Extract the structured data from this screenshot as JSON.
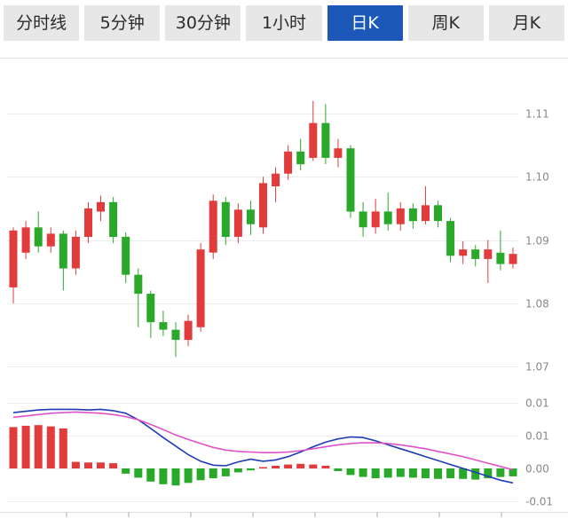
{
  "tabs": [
    {
      "key": "time-share",
      "label": "分时线",
      "active": false
    },
    {
      "key": "5min",
      "label": "5分钟",
      "active": false
    },
    {
      "key": "30min",
      "label": "30分钟",
      "active": false
    },
    {
      "key": "1hour",
      "label": "1小时",
      "active": false
    },
    {
      "key": "day-k",
      "label": "日K",
      "active": true
    },
    {
      "key": "week-k",
      "label": "周K",
      "active": false
    },
    {
      "key": "month-k",
      "label": "月K",
      "active": false
    }
  ],
  "colors": {
    "up": "#e23b3b",
    "down": "#2aa82a",
    "tab_bg": "#e7e7e7",
    "tab_text": "#2b2b2b",
    "active_tab_bg": "#1b58b8",
    "active_tab_text": "#ffffff",
    "grid": "#ececec",
    "axis_text": "#888888",
    "frame": "#dddddd"
  },
  "chart_data": [
    {
      "type": "candlestick",
      "panel": "price",
      "up_color": "#e23b3b",
      "down_color": "#2aa82a",
      "y_axis": {
        "side": "right",
        "ticks": [
          {
            "value": 1.11,
            "label": "1.11"
          },
          {
            "value": 1.1,
            "label": "1.10"
          },
          {
            "value": 1.09,
            "label": "1.09"
          },
          {
            "value": 1.08,
            "label": "1.08"
          },
          {
            "value": 1.07,
            "label": "1.07"
          }
        ]
      },
      "candle_format": [
        "open",
        "high",
        "low",
        "close"
      ],
      "candles": [
        [
          1.0825,
          1.092,
          1.08,
          1.0915
        ],
        [
          1.088,
          1.093,
          1.087,
          1.092
        ],
        [
          1.092,
          1.0945,
          1.088,
          1.089
        ],
        [
          1.089,
          1.092,
          1.088,
          1.091
        ],
        [
          1.091,
          1.0915,
          1.082,
          1.0855
        ],
        [
          1.0855,
          1.0915,
          1.0845,
          1.0905
        ],
        [
          1.0905,
          1.096,
          1.0895,
          1.095
        ],
        [
          1.0945,
          1.097,
          1.093,
          1.096
        ],
        [
          1.096,
          1.0968,
          1.0895,
          1.0905
        ],
        [
          1.0905,
          1.0912,
          1.0832,
          1.0845
        ],
        [
          1.0845,
          1.0855,
          1.0762,
          1.0815
        ],
        [
          1.0815,
          1.082,
          1.0745,
          1.077
        ],
        [
          1.077,
          1.0788,
          1.0748,
          1.0758
        ],
        [
          1.0758,
          1.077,
          1.0715,
          1.0742
        ],
        [
          1.0742,
          1.0782,
          1.0732,
          1.0772
        ],
        [
          1.0762,
          1.0895,
          1.0755,
          1.0885
        ],
        [
          1.088,
          1.0972,
          1.087,
          1.0962
        ],
        [
          1.096,
          1.0968,
          1.0892,
          1.0905
        ],
        [
          1.0905,
          1.0958,
          1.0895,
          1.0948
        ],
        [
          1.0948,
          1.0962,
          1.0908,
          1.0925
        ],
        [
          1.092,
          1.1,
          1.091,
          1.099
        ],
        [
          1.0985,
          1.1015,
          1.096,
          1.1005
        ],
        [
          1.1005,
          1.105,
          1.0995,
          1.104
        ],
        [
          1.104,
          1.106,
          1.101,
          1.102
        ],
        [
          1.103,
          1.112,
          1.1025,
          1.1085
        ],
        [
          1.1085,
          1.1115,
          1.102,
          1.103
        ],
        [
          1.103,
          1.106,
          1.1015,
          1.1045
        ],
        [
          1.1045,
          1.105,
          1.0935,
          1.0945
        ],
        [
          1.0945,
          1.096,
          1.0905,
          1.092
        ],
        [
          1.092,
          1.0965,
          1.091,
          1.0945
        ],
        [
          1.0945,
          1.0975,
          1.0915,
          1.0925
        ],
        [
          1.0925,
          1.096,
          1.0915,
          1.095
        ],
        [
          1.095,
          1.0958,
          1.0918,
          1.093
        ],
        [
          1.093,
          1.0985,
          1.0925,
          1.0955
        ],
        [
          1.0955,
          1.0962,
          1.092,
          1.093
        ],
        [
          1.093,
          1.0935,
          1.0865,
          1.0875
        ],
        [
          1.0875,
          1.0898,
          1.0862,
          1.0885
        ],
        [
          1.0885,
          1.0892,
          1.0858,
          1.087
        ],
        [
          1.087,
          1.09,
          1.0832,
          1.0885
        ],
        [
          1.088,
          1.0915,
          1.0852,
          1.0862
        ],
        [
          1.0862,
          1.0888,
          1.0855,
          1.0878
        ]
      ]
    },
    {
      "type": "bar+line",
      "panel": "macd",
      "y_axis": {
        "side": "right",
        "ticks": [
          {
            "value": 0.01,
            "label": "0.01"
          },
          {
            "value": 0.005,
            "label": "0.01"
          },
          {
            "value": 0,
            "label": "0.00"
          },
          {
            "value": -0.005,
            "label": "-0.01"
          }
        ]
      },
      "histogram": [
        0.0063,
        0.0065,
        0.0066,
        0.0064,
        0.0061,
        0.001,
        0.0009,
        0.0009,
        0.0008,
        -0.0008,
        -0.0014,
        -0.002,
        -0.0024,
        -0.0026,
        -0.0022,
        -0.0018,
        -0.0015,
        -0.0012,
        -0.0006,
        -0.0003,
        0.0002,
        0.0004,
        0.0006,
        0.0007,
        0.0006,
        0.0004,
        -0.0004,
        -0.001,
        -0.0013,
        -0.0015,
        -0.0014,
        -0.0013,
        -0.0014,
        -0.0015,
        -0.0016,
        -0.0015,
        -0.0016,
        -0.0017,
        -0.0015,
        -0.0013,
        -0.0012
      ],
      "series": [
        {
          "name": "DIF",
          "color": "#1f3bb3",
          "values": [
            0.0085,
            0.0087,
            0.0089,
            0.009,
            0.009,
            0.009,
            0.0089,
            0.009,
            0.0088,
            0.0084,
            0.0074,
            0.0061,
            0.0047,
            0.0034,
            0.0021,
            0.0011,
            0.0005,
            0.0004,
            0.001,
            0.0014,
            0.0011,
            0.0013,
            0.0018,
            0.0025,
            0.0033,
            0.004,
            0.0045,
            0.0048,
            0.0047,
            0.0042,
            0.0036,
            0.003,
            0.0024,
            0.0018,
            0.0012,
            0.0006,
            0.0,
            -0.0006,
            -0.0012,
            -0.0018,
            -0.0022
          ]
        },
        {
          "name": "DEA",
          "color": "#e052c8",
          "values": [
            0.0078,
            0.008,
            0.0082,
            0.0084,
            0.0085,
            0.0086,
            0.0085,
            0.0084,
            0.0082,
            0.0079,
            0.0074,
            0.0067,
            0.0059,
            0.0051,
            0.0044,
            0.0038,
            0.0032,
            0.0028,
            0.0026,
            0.0025,
            0.0024,
            0.0024,
            0.0025,
            0.0027,
            0.003,
            0.0033,
            0.0036,
            0.0038,
            0.0039,
            0.0039,
            0.0038,
            0.0036,
            0.0033,
            0.003,
            0.0026,
            0.0022,
            0.0018,
            0.0013,
            0.0008,
            0.0003,
            -0.0002
          ]
        }
      ]
    }
  ]
}
